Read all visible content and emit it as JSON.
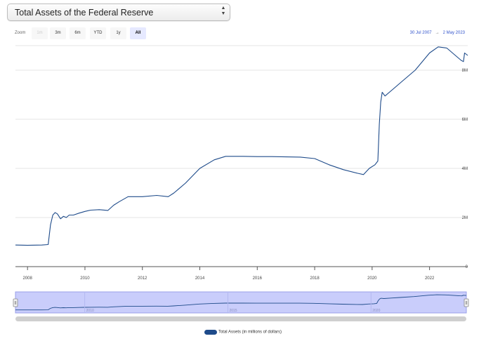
{
  "selector": {
    "value": "Total Assets of the Federal Reserve"
  },
  "zoom": {
    "label": "Zoom",
    "buttons": [
      {
        "label": "1m",
        "state": "disabled"
      },
      {
        "label": "3m",
        "state": "normal"
      },
      {
        "label": "6m",
        "state": "normal"
      },
      {
        "label": "YTD",
        "state": "normal"
      },
      {
        "label": "1y",
        "state": "normal"
      },
      {
        "label": "All",
        "state": "active"
      }
    ]
  },
  "range": {
    "from": "30 Jul 2007",
    "separator": "→",
    "to": "2 May 2023"
  },
  "legend": {
    "label": "Total Assets (in millions of dollars)"
  },
  "colors": {
    "line": "#1e4b8a",
    "navigator_fill": "#c9cdfb",
    "active_button": "#e6e9ff",
    "date_link": "#3355cc"
  },
  "chart_data": {
    "type": "line",
    "title": "",
    "xlabel": "",
    "ylabel": "",
    "xlim": [
      2007.58,
      2023.33
    ],
    "ylim": [
      0,
      9000000
    ],
    "x_ticks": [
      2008,
      2010,
      2012,
      2014,
      2016,
      2018,
      2020,
      2022
    ],
    "x_tick_labels": [
      "2008",
      "2010",
      "2012",
      "2014",
      "2016",
      "2018",
      "2020",
      "2022"
    ],
    "y_ticks": [
      0,
      2000000,
      4000000,
      6000000,
      8000000
    ],
    "y_tick_labels": [
      "0",
      "2M",
      "4M",
      "6M",
      "8M"
    ],
    "grid": true,
    "legend_position": "bottom-center",
    "navigator": {
      "labels": [
        "2010",
        "2015",
        "2020"
      ]
    },
    "series": [
      {
        "name": "Total Assets (in millions of dollars)",
        "x": [
          2007.58,
          2008.0,
          2008.5,
          2008.72,
          2008.8,
          2008.88,
          2008.96,
          2009.04,
          2009.15,
          2009.25,
          2009.35,
          2009.45,
          2009.6,
          2009.8,
          2010.0,
          2010.2,
          2010.5,
          2010.8,
          2011.0,
          2011.2,
          2011.4,
          2011.5,
          2012.0,
          2012.5,
          2012.9,
          2013.1,
          2013.5,
          2014.0,
          2014.5,
          2014.9,
          2015.5,
          2016.0,
          2016.5,
          2017.0,
          2017.5,
          2018.0,
          2018.5,
          2019.0,
          2019.5,
          2019.7,
          2019.9,
          2020.1,
          2020.2,
          2020.25,
          2020.3,
          2020.35,
          2020.45,
          2020.7,
          2021.0,
          2021.5,
          2022.0,
          2022.3,
          2022.6,
          2022.9,
          2023.1,
          2023.18,
          2023.22,
          2023.33
        ],
        "values": [
          880000,
          870000,
          880000,
          900000,
          1700000,
          2100000,
          2200000,
          2150000,
          1950000,
          2050000,
          2000000,
          2100000,
          2100000,
          2180000,
          2250000,
          2300000,
          2320000,
          2290000,
          2500000,
          2650000,
          2780000,
          2850000,
          2850000,
          2900000,
          2850000,
          3000000,
          3400000,
          4000000,
          4350000,
          4490000,
          4490000,
          4480000,
          4480000,
          4470000,
          4460000,
          4400000,
          4150000,
          3950000,
          3800000,
          3750000,
          4000000,
          4150000,
          4300000,
          5800000,
          6700000,
          7100000,
          6950000,
          7200000,
          7500000,
          8000000,
          8700000,
          8950000,
          8900000,
          8600000,
          8400000,
          8350000,
          8700000,
          8600000
        ]
      }
    ]
  }
}
